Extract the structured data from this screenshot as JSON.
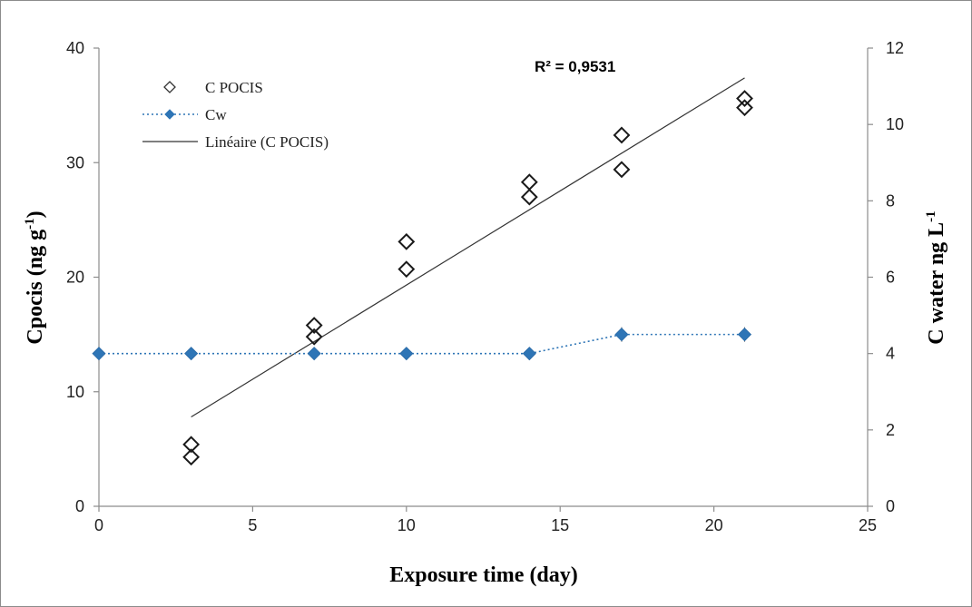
{
  "chart_data": {
    "type": "scatter",
    "xlabel": "Exposure time (day)",
    "ylabel_left": "Cpocis (ng g",
    "ylabel_left_sup": "-1",
    "ylabel_left_end": ")",
    "ylabel_right": "C water ng L",
    "ylabel_right_sup": "-1",
    "xlim": [
      0,
      25
    ],
    "ylim_left": [
      0,
      40
    ],
    "ylim_right": [
      0,
      12
    ],
    "x_ticks": [
      "0",
      "5",
      "10",
      "15",
      "20",
      "25"
    ],
    "y_left_ticks": [
      "0",
      "10",
      "20",
      "30",
      "40"
    ],
    "y_right_ticks": [
      "0",
      "2",
      "4",
      "6",
      "8",
      "10",
      "12"
    ],
    "grid": false,
    "legend_position": "top-left",
    "annotation": "R² = 0,9531",
    "series": [
      {
        "name": "C POCIS",
        "axis": "left",
        "marker": "hollow-diamond",
        "color": "#1a1a1a",
        "points": [
          [
            3,
            4.3
          ],
          [
            3,
            5.4
          ],
          [
            7,
            14.8
          ],
          [
            7,
            15.8
          ],
          [
            10,
            20.7
          ],
          [
            10,
            23.1
          ],
          [
            14,
            27.0
          ],
          [
            14,
            28.3
          ],
          [
            17,
            29.4
          ],
          [
            17,
            32.4
          ],
          [
            21,
            34.8
          ],
          [
            21,
            35.6
          ]
        ]
      },
      {
        "name": "Cw",
        "axis": "right",
        "marker": "filled-diamond",
        "line": "dotted",
        "color": "#2e75b6",
        "points": [
          [
            0,
            4.0
          ],
          [
            3,
            4.0
          ],
          [
            7,
            4.0
          ],
          [
            10,
            4.0
          ],
          [
            14,
            4.0
          ],
          [
            17,
            4.5
          ],
          [
            21,
            4.5
          ]
        ]
      },
      {
        "name": "Linéaire (C POCIS)",
        "axis": "left",
        "line": "solid",
        "color": "#333333",
        "points": [
          [
            3,
            7.8
          ],
          [
            21,
            37.4
          ]
        ]
      }
    ]
  }
}
